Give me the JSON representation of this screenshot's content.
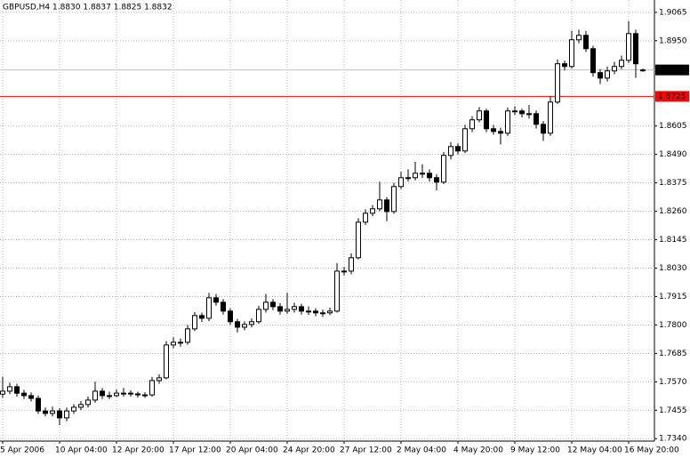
{
  "chart_data": {
    "type": "candlestick",
    "title": "GBPUSD,H4  1.8830 1.8837 1.8825 1.8832",
    "categories": [
      "5 Apr 2006",
      null,
      null,
      null,
      null,
      null,
      null,
      null,
      "10 Apr 04:00",
      null,
      null,
      null,
      null,
      null,
      null,
      null,
      "12 Apr 20:00",
      null,
      null,
      null,
      null,
      null,
      null,
      null,
      "17 Apr 12:00",
      null,
      null,
      null,
      null,
      null,
      null,
      null,
      "20 Apr 04:00",
      null,
      null,
      null,
      null,
      null,
      null,
      null,
      "24 Apr 20:00",
      null,
      null,
      null,
      null,
      null,
      null,
      null,
      "27 Apr 12:00",
      null,
      null,
      null,
      null,
      null,
      null,
      null,
      "2 May 04:00",
      null,
      null,
      null,
      null,
      null,
      null,
      null,
      "4 May 20:00",
      null,
      null,
      null,
      null,
      null,
      null,
      null,
      "9 May 12:00",
      null,
      null,
      null,
      null,
      null,
      null,
      null,
      "12 May 04:00",
      null,
      null,
      null,
      null,
      null,
      null,
      null,
      "16 May 20:00",
      null,
      null
    ],
    "open": [
      1.752,
      1.7532,
      1.755,
      1.7524,
      1.7514,
      1.7503,
      1.7452,
      1.7442,
      1.7452,
      1.7424,
      1.7452,
      1.7467,
      1.7478,
      1.7496,
      1.7532,
      1.7514,
      1.7514,
      1.7524,
      1.7524,
      1.7521,
      1.7517,
      1.7517,
      1.7575,
      1.7586,
      1.7719,
      1.773,
      1.773,
      1.7784,
      1.7838,
      1.7827,
      1.791,
      1.7892,
      1.7856,
      1.7813,
      1.7791,
      1.7802,
      1.7813,
      1.7863,
      1.7892,
      1.7874,
      1.7856,
      1.7863,
      1.7874,
      1.7856,
      1.7856,
      1.7849,
      1.7849,
      1.7856,
      1.8018,
      1.8018,
      1.8072,
      1.8216,
      1.8252,
      1.827,
      1.8306,
      1.8259,
      1.836,
      1.8396,
      1.8396,
      1.8414,
      1.8414,
      1.8396,
      1.8378,
      1.8486,
      1.8522,
      1.8504,
      1.8594,
      1.863,
      1.8666,
      1.8594,
      1.8583,
      1.8576,
      1.8666,
      1.8666,
      1.8655,
      1.8655,
      1.8612,
      1.8576,
      1.8702,
      1.8857,
      1.8846,
      1.8954,
      1.8972,
      1.8918,
      1.8821,
      1.8799,
      1.8828,
      1.8846,
      1.8871,
      1.8979,
      1.883
    ],
    "high": [
      1.759,
      1.7566,
      1.7562,
      1.7538,
      1.7527,
      1.7515,
      1.7466,
      1.747,
      1.7463,
      1.7466,
      1.748,
      1.7492,
      1.751,
      1.757,
      1.7545,
      1.753,
      1.754,
      1.7545,
      1.7535,
      1.753,
      1.7528,
      1.759,
      1.76,
      1.7735,
      1.775,
      1.7745,
      1.78,
      1.7852,
      1.785,
      1.793,
      1.7925,
      1.7905,
      1.7868,
      1.7825,
      1.7815,
      1.7826,
      1.7878,
      1.7925,
      1.7905,
      1.7888,
      1.793,
      1.789,
      1.7886,
      1.7875,
      1.7868,
      1.7862,
      1.787,
      1.805,
      1.8035,
      1.809,
      1.8232,
      1.8268,
      1.8285,
      1.838,
      1.8318,
      1.8375,
      1.842,
      1.843,
      1.846,
      1.845,
      1.843,
      1.841,
      1.85,
      1.854,
      1.8535,
      1.861,
      1.8645,
      1.8682,
      1.8675,
      1.861,
      1.8598,
      1.868,
      1.8685,
      1.8675,
      1.869,
      1.8668,
      1.8625,
      1.8725,
      1.8875,
      1.887,
      1.899,
      1.8995,
      1.899,
      1.893,
      1.8835,
      1.8845,
      1.8865,
      1.889,
      1.903,
      1.8995,
      1.8837
    ],
    "low": [
      1.7505,
      1.752,
      1.751,
      1.75,
      1.749,
      1.744,
      1.743,
      1.743,
      1.7395,
      1.741,
      1.744,
      1.7455,
      1.7466,
      1.7485,
      1.75,
      1.75,
      1.7508,
      1.751,
      1.751,
      1.7506,
      1.7505,
      1.751,
      1.7562,
      1.758,
      1.7705,
      1.7712,
      1.772,
      1.7775,
      1.7812,
      1.7815,
      1.7878,
      1.7842,
      1.78,
      1.777,
      1.7778,
      1.779,
      1.7805,
      1.785,
      1.786,
      1.7842,
      1.7845,
      1.785,
      1.7842,
      1.784,
      1.7835,
      1.7832,
      1.784,
      1.785,
      1.8,
      1.8005,
      1.8065,
      1.8205,
      1.824,
      1.826,
      1.822,
      1.825,
      1.835,
      1.838,
      1.8385,
      1.8395,
      1.838,
      1.8345,
      1.837,
      1.847,
      1.849,
      1.8495,
      1.858,
      1.862,
      1.858,
      1.857,
      1.853,
      1.8565,
      1.865,
      1.864,
      1.8635,
      1.8595,
      1.8545,
      1.8565,
      1.8695,
      1.883,
      1.8838,
      1.894,
      1.8905,
      1.8805,
      1.8775,
      1.8785,
      1.8815,
      1.8835,
      1.886,
      1.88,
      1.8825
    ],
    "close": [
      1.7532,
      1.755,
      1.7524,
      1.7514,
      1.7503,
      1.7452,
      1.7442,
      1.7452,
      1.7424,
      1.7452,
      1.7467,
      1.7478,
      1.7496,
      1.7532,
      1.7514,
      1.7514,
      1.7524,
      1.7524,
      1.7521,
      1.7517,
      1.7517,
      1.7575,
      1.7586,
      1.7719,
      1.773,
      1.773,
      1.7784,
      1.7838,
      1.7827,
      1.791,
      1.7892,
      1.7856,
      1.7813,
      1.7791,
      1.7802,
      1.7813,
      1.7863,
      1.7892,
      1.7874,
      1.7856,
      1.7863,
      1.7874,
      1.7856,
      1.7856,
      1.7849,
      1.7849,
      1.7856,
      1.8018,
      1.8018,
      1.8072,
      1.8216,
      1.8252,
      1.827,
      1.8306,
      1.8259,
      1.836,
      1.8396,
      1.8396,
      1.8414,
      1.8414,
      1.8396,
      1.8378,
      1.8486,
      1.8522,
      1.8504,
      1.8594,
      1.863,
      1.8666,
      1.8594,
      1.8583,
      1.8576,
      1.8666,
      1.8666,
      1.8655,
      1.8655,
      1.8612,
      1.8576,
      1.8702,
      1.8857,
      1.8846,
      1.8954,
      1.8972,
      1.8918,
      1.8821,
      1.8799,
      1.8828,
      1.8846,
      1.8871,
      1.8979,
      1.8857,
      1.8832
    ],
    "up_color": "#ffffff",
    "down_color": "#000000",
    "line_color": "#000000",
    "ylim": [
      1.733,
      1.9115
    ],
    "yticks": [
      1.9065,
      {
        "value": 1.895,
        "label": "1.8950"
      },
      1.8605,
      {
        "value": 1.849,
        "label": "1.8490"
      },
      1.8375,
      {
        "value": 1.826,
        "label": "1.8260"
      },
      1.8145,
      {
        "value": 1.803,
        "label": "1.8030"
      },
      1.7915,
      {
        "value": 1.78,
        "label": "1.7800"
      },
      1.7685,
      {
        "value": 1.757,
        "label": "1.7570"
      },
      1.7455,
      {
        "value": 1.734,
        "label": "1.7340"
      }
    ],
    "grid": true,
    "price_line": {
      "value": 1.8832,
      "label": "1.8832",
      "color": "#c0c0c0"
    },
    "level_line": {
      "value": 1.8725,
      "label": "1.8725",
      "color": "#ff0000"
    }
  }
}
